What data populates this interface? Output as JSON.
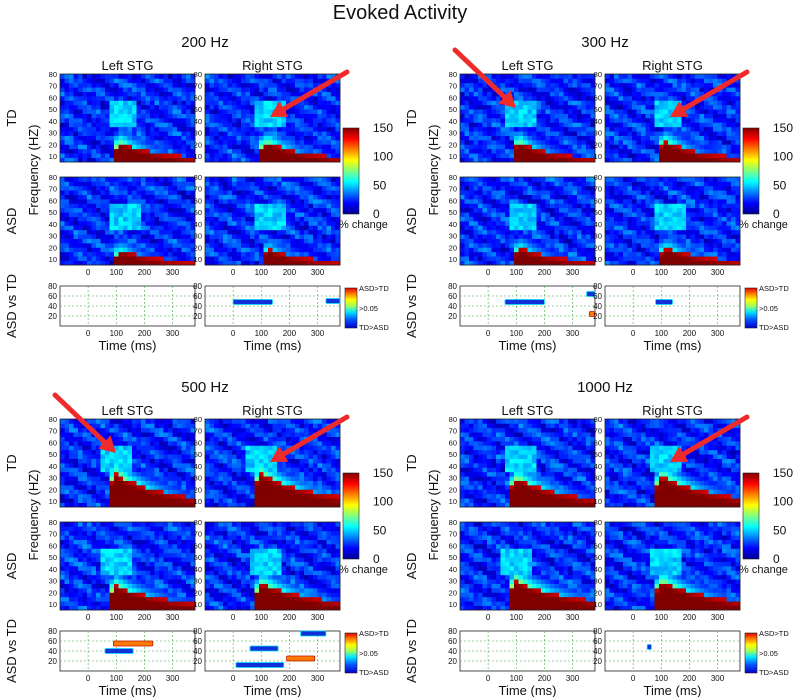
{
  "figure": {
    "title": "Evoked Activity"
  },
  "colors": {
    "arrow": "#ee2a2a",
    "colormap": [
      "#00008f",
      "#0000ff",
      "#0080ff",
      "#00ffff",
      "#80ff80",
      "#ffff00",
      "#ff8000",
      "#ff0000",
      "#800000"
    ],
    "background_blue": "#0b2fb5",
    "significance_grid": "#3fae3f"
  },
  "chart_data": [
    {
      "type": "heatmap",
      "title": "200 Hz",
      "column_titles": [
        "Left STG",
        "Right STG"
      ],
      "row_labels": [
        "TD",
        "ASD",
        "ASD vs TD"
      ],
      "ylabel": "Frequency (HZ)",
      "xlabel": "Time (ms)",
      "x_ticks": [
        "0",
        "100",
        "200",
        "300"
      ],
      "y_ticks": [
        "10",
        "20",
        "30",
        "40",
        "50",
        "60",
        "70",
        "80"
      ],
      "sig_y_ticks": [
        "20",
        "40",
        "60",
        "80"
      ],
      "xlim": [
        -100,
        380
      ],
      "ylim": [
        5,
        80
      ],
      "colorbar": {
        "ticks": [
          "0",
          "50",
          "100",
          "150"
        ],
        "label": "% change",
        "range": [
          0,
          150
        ]
      },
      "sig_colorbar": {
        "top": "ASD>TD",
        "middle": ">0.05",
        "bottom": "TD>ASD"
      },
      "arrows": [
        "TD Right STG"
      ],
      "panels": {
        "td_left": {
          "onset": 90,
          "peak": 150,
          "decay": 90,
          "spread": 17
        },
        "td_right": {
          "onset": 95,
          "peak": 150,
          "decay": 90,
          "spread": 18
        },
        "asd_left": {
          "onset": 95,
          "peak": 120,
          "decay": 75,
          "spread": 13
        },
        "asd_right": {
          "onset": 100,
          "peak": 120,
          "decay": 80,
          "spread": 14
        }
      },
      "significance": {
        "left": [],
        "right": [
          {
            "t0": 0,
            "t1": 140,
            "freq": 48,
            "dir": "TD>ASD"
          },
          {
            "t0": 330,
            "t1": 380,
            "freq": 50,
            "dir": "TD>ASD"
          }
        ]
      }
    },
    {
      "type": "heatmap",
      "title": "300 Hz",
      "column_titles": [
        "Left STG",
        "Right STG"
      ],
      "row_labels": [
        "TD",
        "ASD",
        "ASD vs TD"
      ],
      "ylabel": "Frequency (HZ)",
      "xlabel": "Time (ms)",
      "x_ticks": [
        "0",
        "100",
        "200",
        "300"
      ],
      "y_ticks": [
        "10",
        "20",
        "30",
        "40",
        "50",
        "60",
        "70",
        "80"
      ],
      "sig_y_ticks": [
        "20",
        "40",
        "60",
        "80"
      ],
      "xlim": [
        -100,
        380
      ],
      "ylim": [
        5,
        80
      ],
      "colorbar": {
        "ticks": [
          "0",
          "50",
          "100",
          "150"
        ],
        "label": "% change",
        "range": [
          0,
          150
        ]
      },
      "sig_colorbar": {
        "top": "ASD>TD",
        "middle": ">0.05",
        "bottom": "TD>ASD"
      },
      "arrows": [
        "TD Left STG",
        "TD Right STG"
      ],
      "panels": {
        "td_left": {
          "onset": 85,
          "peak": 150,
          "decay": 80,
          "spread": 18
        },
        "td_right": {
          "onset": 90,
          "peak": 150,
          "decay": 85,
          "spread": 19
        },
        "asd_left": {
          "onset": 90,
          "peak": 130,
          "decay": 80,
          "spread": 15
        },
        "asd_right": {
          "onset": 95,
          "peak": 130,
          "decay": 85,
          "spread": 15
        }
      },
      "significance": {
        "left": [
          {
            "t0": 60,
            "t1": 200,
            "freq": 48,
            "dir": "TD>ASD"
          },
          {
            "t0": 350,
            "t1": 380,
            "freq": 64,
            "dir": "TD>ASD"
          },
          {
            "t0": 360,
            "t1": 378,
            "freq": 24,
            "dir": "ASD>TD"
          }
        ],
        "right": [
          {
            "t0": 80,
            "t1": 140,
            "freq": 48,
            "dir": "TD>ASD"
          }
        ]
      }
    },
    {
      "type": "heatmap",
      "title": "500 Hz",
      "column_titles": [
        "Left STG",
        "Right STG"
      ],
      "row_labels": [
        "TD",
        "ASD",
        "ASD vs TD"
      ],
      "ylabel": "Frequency (HZ)",
      "xlabel": "Time (ms)",
      "x_ticks": [
        "0",
        "100",
        "200",
        "300"
      ],
      "y_ticks": [
        "10",
        "20",
        "30",
        "40",
        "50",
        "60",
        "70",
        "80"
      ],
      "sig_y_ticks": [
        "20",
        "40",
        "60",
        "80"
      ],
      "xlim": [
        -100,
        380
      ],
      "ylim": [
        5,
        80
      ],
      "colorbar": {
        "ticks": [
          "0",
          "50",
          "100",
          "150"
        ],
        "label": "% change",
        "range": [
          0,
          150
        ]
      },
      "sig_colorbar": {
        "top": "ASD>TD",
        "middle": ">0.05",
        "bottom": "TD>ASD"
      },
      "arrows": [
        "TD Left STG",
        "TD Right STG"
      ],
      "panels": {
        "td_left": {
          "onset": 70,
          "peak": 160,
          "decay": 130,
          "spread": 30
        },
        "td_right": {
          "onset": 70,
          "peak": 160,
          "decay": 140,
          "spread": 30
        },
        "asd_left": {
          "onset": 70,
          "peak": 150,
          "decay": 120,
          "spread": 22
        },
        "asd_right": {
          "onset": 75,
          "peak": 150,
          "decay": 130,
          "spread": 24
        }
      },
      "significance": {
        "left": [
          {
            "t0": 90,
            "t1": 230,
            "freq": 55,
            "dir": "ASD>TD"
          },
          {
            "t0": 60,
            "t1": 160,
            "freq": 40,
            "dir": "TD>ASD"
          }
        ],
        "right": [
          {
            "t0": 60,
            "t1": 160,
            "freq": 45,
            "dir": "TD>ASD"
          },
          {
            "t0": 240,
            "t1": 330,
            "freq": 75,
            "dir": "TD>ASD"
          },
          {
            "t0": 190,
            "t1": 290,
            "freq": 25,
            "dir": "ASD>TD"
          },
          {
            "t0": 10,
            "t1": 180,
            "freq": 12,
            "dir": "TD>ASD"
          }
        ]
      }
    },
    {
      "type": "heatmap",
      "title": "1000 Hz",
      "column_titles": [
        "Left STG",
        "Right STG"
      ],
      "row_labels": [
        "TD",
        "ASD",
        "ASD vs TD"
      ],
      "ylabel": "Frequency (HZ)",
      "xlabel": "Time (ms)",
      "x_ticks": [
        "0",
        "100",
        "200",
        "300"
      ],
      "y_ticks": [
        "10",
        "20",
        "30",
        "40",
        "50",
        "60",
        "70",
        "80"
      ],
      "sig_y_ticks": [
        "20",
        "40",
        "60",
        "80"
      ],
      "xlim": [
        -100,
        380
      ],
      "ylim": [
        5,
        80
      ],
      "colorbar": {
        "ticks": [
          "0",
          "50",
          "100",
          "150"
        ],
        "label": "% change",
        "range": [
          0,
          150
        ]
      },
      "sig_colorbar": {
        "top": "ASD>TD",
        "middle": ">0.05",
        "bottom": "TD>ASD"
      },
      "arrows": [
        "TD Right STG"
      ],
      "panels": {
        "td_left": {
          "onset": 75,
          "peak": 160,
          "decay": 120,
          "spread": 26
        },
        "td_right": {
          "onset": 75,
          "peak": 160,
          "decay": 130,
          "spread": 28
        },
        "asd_left": {
          "onset": 70,
          "peak": 160,
          "decay": 140,
          "spread": 26
        },
        "asd_right": {
          "onset": 75,
          "peak": 155,
          "decay": 130,
          "spread": 26
        }
      },
      "significance": {
        "left": [],
        "right": [
          {
            "t0": 50,
            "t1": 65,
            "freq": 48,
            "dir": "TD>ASD"
          }
        ]
      }
    }
  ]
}
